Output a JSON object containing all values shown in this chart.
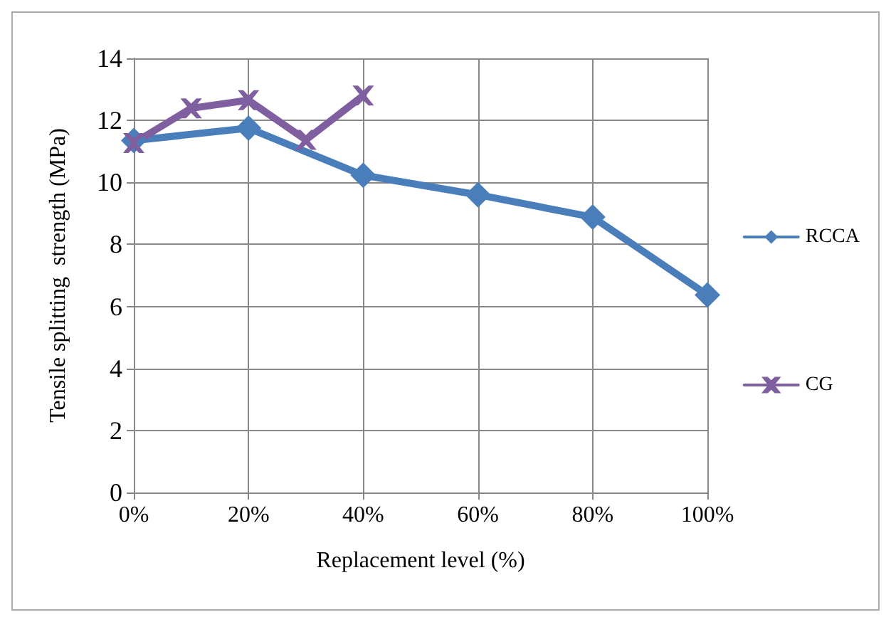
{
  "chart_data": {
    "type": "line",
    "xlabel": "Replacement level (%)",
    "ylabel": "Tensile splitting  strength (MPa)",
    "xlim": [
      0,
      100
    ],
    "xticks": [
      {
        "value": 0,
        "label": "0%"
      },
      {
        "value": 20,
        "label": "20%"
      },
      {
        "value": 40,
        "label": "40%"
      },
      {
        "value": 60,
        "label": "60%"
      },
      {
        "value": 80,
        "label": "80%"
      },
      {
        "value": 100,
        "label": "100%"
      }
    ],
    "ylim": [
      0,
      14
    ],
    "yticks": [
      0,
      2,
      4,
      6,
      8,
      10,
      12,
      14
    ],
    "grid": true,
    "legend": "right",
    "line_style": "solid",
    "series": [
      {
        "name": "RCCA",
        "color": "#4a7ebb",
        "marker": "diamond",
        "x": [
          0,
          20,
          40,
          60,
          80,
          100
        ],
        "values": [
          11.35,
          11.75,
          10.23,
          9.6,
          8.88,
          6.37
        ]
      },
      {
        "name": "CG",
        "color": "#7f5f9f",
        "marker": "cross",
        "x": [
          0,
          10,
          20,
          30,
          40
        ],
        "values": [
          11.27,
          12.39,
          12.65,
          11.37,
          12.8
        ]
      }
    ]
  }
}
